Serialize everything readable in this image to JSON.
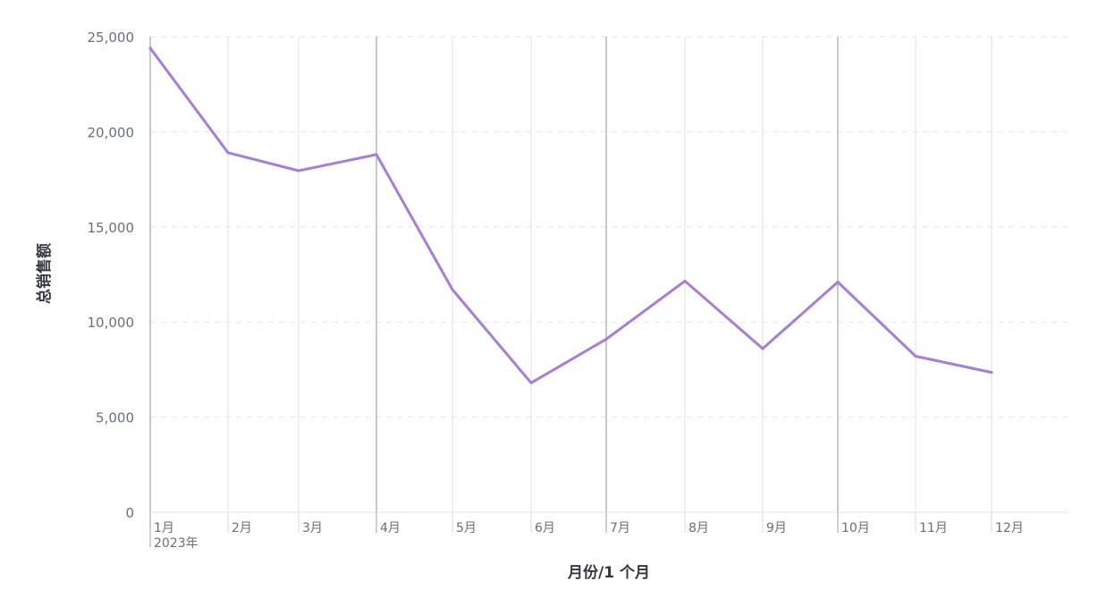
{
  "chart_data": {
    "type": "line",
    "title": "",
    "xlabel": "月份/1 个月",
    "ylabel": "总销售额",
    "categories": [
      "1月",
      "2月",
      "3月",
      "4月",
      "5月",
      "6月",
      "7月",
      "8月",
      "9月",
      "10月",
      "11月",
      "12月"
    ],
    "year_label": "2023年",
    "ylim": [
      0,
      25000
    ],
    "yticks": [
      0,
      5000,
      10000,
      15000,
      20000,
      25000
    ],
    "ytick_labels": [
      "0",
      "5,000",
      "10,000",
      "15,000",
      "20,000",
      "25,000"
    ],
    "series": [
      {
        "values": [
          24400,
          18900,
          17950,
          18800,
          11700,
          6800,
          9100,
          12150,
          8600,
          12100,
          8200,
          7350
        ],
        "color": "#a67fd4"
      }
    ],
    "grid": true,
    "legend": "none"
  }
}
